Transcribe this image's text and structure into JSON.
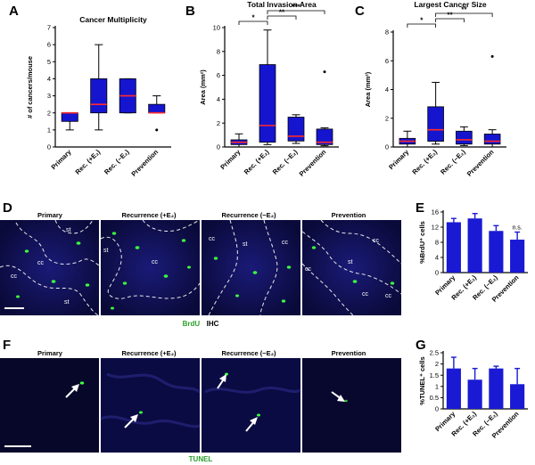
{
  "panels": {
    "A": "A",
    "B": "B",
    "C": "C",
    "D": "D",
    "E": "E",
    "F": "F",
    "G": "G"
  },
  "stains": {
    "brdu_word": "BrdU",
    "ihc_word": "IHC",
    "tunel": "TUNEL"
  },
  "micrographs": {
    "labels": [
      "Primary",
      "Recurrence (+E₂)",
      "Recurrence (−E₂)",
      "Prevention"
    ],
    "tissue": {
      "cc": "cc",
      "st": "st"
    }
  },
  "colors": {
    "box_fill": "#1515d0",
    "median": "#ff2a2a",
    "bar_fill": "#1a1ad4",
    "micro_bg": "#06061c",
    "green_cell": "#3cff3c"
  },
  "chart_data": [
    {
      "id": "A",
      "type": "box",
      "title": "Cancer Multiplicity",
      "ylabel": "# of cancers/mouse",
      "ylim": [
        0,
        7
      ],
      "yticks": [
        0,
        1,
        2,
        3,
        4,
        5,
        6,
        7
      ],
      "categories": [
        "Primary",
        "Rec. (+E₂)",
        "Rec. (−E₂)",
        "Prevention"
      ],
      "boxes": [
        {
          "min": 1,
          "q1": 1.5,
          "median": 2,
          "q3": 2,
          "max": 2,
          "outliers": []
        },
        {
          "min": 1,
          "q1": 2,
          "median": 2.5,
          "q3": 4,
          "max": 6,
          "outliers": []
        },
        {
          "min": 2,
          "q1": 2,
          "median": 3,
          "q3": 4,
          "max": 4,
          "outliers": []
        },
        {
          "min": 2,
          "q1": 2,
          "median": 2,
          "q3": 2.5,
          "max": 3,
          "outliers": [
            1
          ]
        }
      ],
      "significance": []
    },
    {
      "id": "B",
      "type": "box",
      "title": "Total Invasion Area",
      "ylabel": "Area (mm²)",
      "ylim": [
        0,
        10
      ],
      "yticks": [
        0,
        2,
        4,
        6,
        8,
        10
      ],
      "categories": [
        "Primary",
        "Rec. (+E₂)",
        "Rec. (−E₂)",
        "Prevention"
      ],
      "boxes": [
        {
          "min": 0,
          "q1": 0.2,
          "median": 0.4,
          "q3": 0.6,
          "max": 1.1,
          "outliers": []
        },
        {
          "min": 0.2,
          "q1": 0.4,
          "median": 1.8,
          "q3": 6.9,
          "max": 9.8,
          "outliers": []
        },
        {
          "min": 0.3,
          "q1": 0.5,
          "median": 0.9,
          "q3": 2.5,
          "max": 2.7,
          "outliers": []
        },
        {
          "min": 0.1,
          "q1": 0.2,
          "median": 0.4,
          "q3": 1.5,
          "max": 1.6,
          "outliers": [
            6.3
          ]
        }
      ],
      "significance": [
        {
          "from": 0,
          "to": 1,
          "label": "*",
          "level": 0
        },
        {
          "from": 1,
          "to": 2,
          "label": "**",
          "level": 1
        },
        {
          "from": 1,
          "to": 3,
          "label": "***",
          "level": 2
        }
      ]
    },
    {
      "id": "C",
      "type": "box",
      "title": "Largest Cancer Size",
      "ylabel": "Area (mm²)",
      "ylim": [
        0,
        8
      ],
      "yticks": [
        0,
        2,
        4,
        6,
        8
      ],
      "categories": [
        "Primary",
        "Rec. (+E₂)",
        "Rec. (−E₂)",
        "Prevention"
      ],
      "boxes": [
        {
          "min": 0,
          "q1": 0.2,
          "median": 0.4,
          "q3": 0.6,
          "max": 1.1,
          "outliers": []
        },
        {
          "min": 0.2,
          "q1": 0.4,
          "median": 1.2,
          "q3": 2.8,
          "max": 4.5,
          "outliers": []
        },
        {
          "min": 0.1,
          "q1": 0.2,
          "median": 0.5,
          "q3": 1.1,
          "max": 1.4,
          "outliers": []
        },
        {
          "min": 0,
          "q1": 0.2,
          "median": 0.4,
          "q3": 0.9,
          "max": 1.2,
          "outliers": [
            6.3
          ]
        }
      ],
      "significance": [
        {
          "from": 0,
          "to": 1,
          "label": "*",
          "level": 0
        },
        {
          "from": 1,
          "to": 2,
          "label": "**",
          "level": 1
        },
        {
          "from": 1,
          "to": 3,
          "label": "**",
          "level": 2
        }
      ]
    },
    {
      "id": "E",
      "type": "bar",
      "title": "",
      "ylabel": "%BrdU⁺ cells",
      "ylim": [
        0,
        16
      ],
      "yticks": [
        0,
        4,
        8,
        12,
        16
      ],
      "categories": [
        "Primary",
        "Rec. (+E₂)",
        "Rec. (−E₂)",
        "Prevention"
      ],
      "values": [
        13.3,
        14.3,
        11.0,
        8.7
      ],
      "errors": [
        1.0,
        1.3,
        1.4,
        2.0
      ],
      "annotations": [
        {
          "index": 3,
          "text": "n.s."
        }
      ]
    },
    {
      "id": "G",
      "type": "bar",
      "title": "",
      "ylabel": "%TUNEL⁺ cells",
      "ylim": [
        0,
        2.5
      ],
      "yticks": [
        0,
        0.5,
        1.0,
        1.5,
        2.0,
        2.5
      ],
      "ytick_labels": [
        "0",
        "0.5",
        "1",
        "1.5",
        "2",
        "2.5"
      ],
      "categories": [
        "Primary",
        "Rec. (+E₂)",
        "Rec. (−E₂)",
        "Prevention"
      ],
      "values": [
        1.8,
        1.3,
        1.8,
        1.1
      ],
      "errors": [
        0.5,
        0.5,
        0.1,
        0.7
      ],
      "annotations": []
    }
  ]
}
